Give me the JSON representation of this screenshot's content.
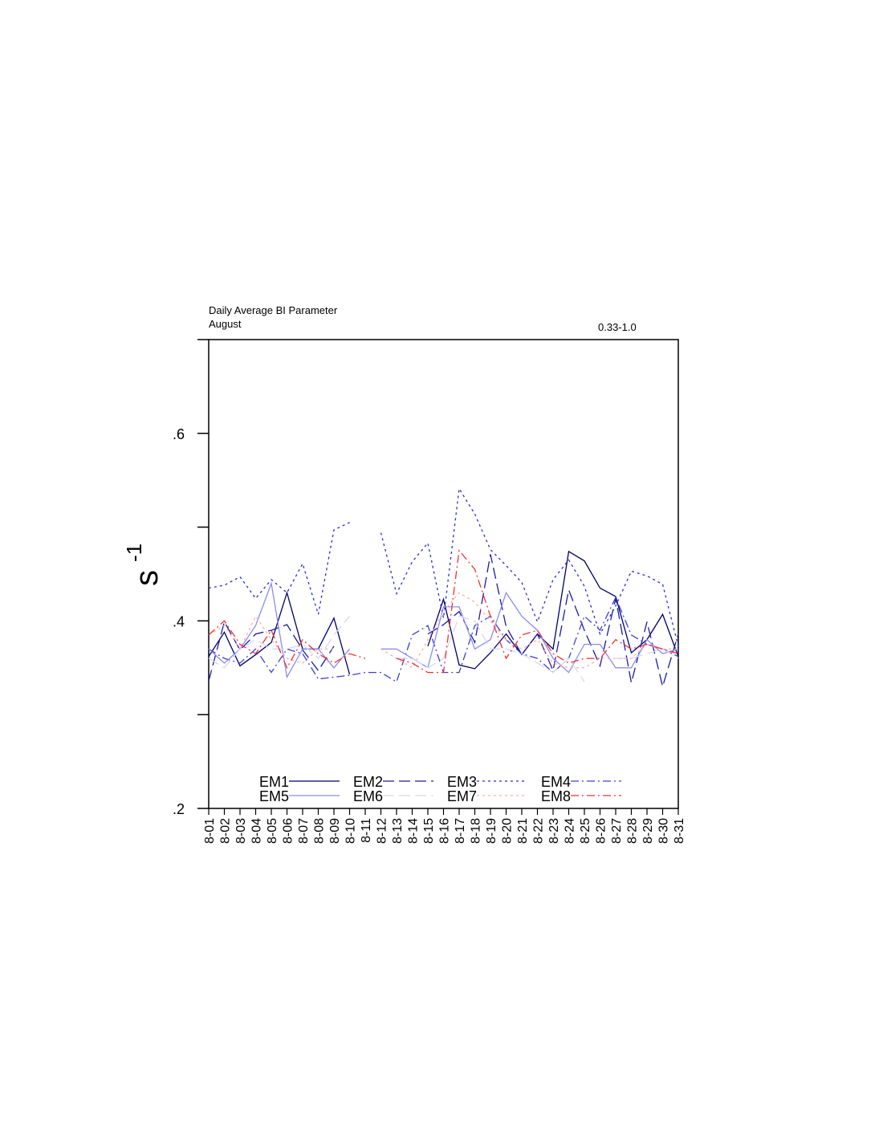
{
  "chart_data": {
    "type": "line",
    "title": "Daily Average BI Parameter",
    "subtitle": "August",
    "annotation": "0.33-1.0",
    "ylabel": "s",
    "ylabel_superscript": "-1",
    "categories": [
      "8-01",
      "8-02",
      "8-03",
      "8-04",
      "8-05",
      "8-06",
      "8-07",
      "8-08",
      "8-09",
      "8-10",
      "8-11",
      "8-12",
      "8-13",
      "8-14",
      "8-15",
      "8-16",
      "8-17",
      "8-18",
      "8-19",
      "8-20",
      "8-21",
      "8-22",
      "8-23",
      "8-24",
      "8-25",
      "8-26",
      "8-27",
      "8-28",
      "8-29",
      "8-30",
      "8-31"
    ],
    "ylim": [
      0.2,
      0.7
    ],
    "yticks": [
      {
        "value": 0.2,
        "label": ".2"
      },
      {
        "value": 0.4,
        "label": ".4"
      },
      {
        "value": 0.6,
        "label": ".6"
      }
    ],
    "minor_yticks": [
      0.3,
      0.5,
      0.7
    ],
    "series": [
      {
        "name": "EM1",
        "color": "#00006e",
        "line_style": "solid",
        "values": [
          0.362,
          0.388,
          0.352,
          0.364,
          0.377,
          0.43,
          0.37,
          0.37,
          0.403,
          0.343,
          null,
          null,
          null,
          null,
          0.373,
          0.423,
          0.353,
          0.349,
          0.366,
          0.386,
          0.364,
          0.386,
          0.37,
          0.474,
          0.464,
          0.435,
          0.426,
          0.366,
          0.38,
          0.407,
          0.362
        ]
      },
      {
        "name": "EM2",
        "color": "#1c1ca6",
        "line_style": "dashed",
        "values": [
          0.336,
          0.399,
          0.369,
          0.386,
          0.39,
          0.396,
          0.369,
          0.347,
          0.373,
          null,
          null,
          null,
          null,
          null,
          0.386,
          0.396,
          0.41,
          0.377,
          0.471,
          0.394,
          0.364,
          0.386,
          0.347,
          0.433,
          0.39,
          0.352,
          0.424,
          0.334,
          0.399,
          0.33,
          0.386
        ]
      },
      {
        "name": "EM3",
        "color": "#2c2ccc",
        "line_style": "dotted",
        "values": [
          0.435,
          0.438,
          0.447,
          0.424,
          0.444,
          0.43,
          0.461,
          0.407,
          0.497,
          0.505,
          null,
          0.494,
          0.429,
          0.463,
          0.483,
          0.403,
          0.541,
          0.514,
          0.476,
          0.459,
          0.441,
          0.399,
          0.444,
          0.465,
          0.437,
          0.386,
          0.416,
          0.453,
          0.448,
          0.439,
          0.373
        ]
      },
      {
        "name": "EM4",
        "color": "#4040d0",
        "line_style": "dashdot",
        "values": [
          0.37,
          0.36,
          0.355,
          0.37,
          0.345,
          0.37,
          0.365,
          0.338,
          0.34,
          0.342,
          0.345,
          0.345,
          0.335,
          0.385,
          0.395,
          0.345,
          0.345,
          0.395,
          0.405,
          0.38,
          0.365,
          0.36,
          0.345,
          0.36,
          0.405,
          0.39,
          0.425,
          0.385,
          0.375,
          0.37,
          0.362
        ]
      },
      {
        "name": "EM5",
        "color": "#8c8cf0",
        "line_style": "solid",
        "values": [
          0.37,
          0.355,
          0.37,
          0.395,
          0.44,
          0.34,
          0.37,
          0.37,
          0.35,
          0.37,
          null,
          0.37,
          0.37,
          0.36,
          0.35,
          0.415,
          0.415,
          0.37,
          0.38,
          0.43,
          0.405,
          0.39,
          0.36,
          0.345,
          0.375,
          0.375,
          0.35,
          0.35,
          0.38,
          0.365,
          0.37
        ]
      },
      {
        "name": "EM6",
        "color": "#d6d6f4",
        "line_style": "dashed",
        "values": [
          0.36,
          0.35,
          0.37,
          0.38,
          0.37,
          0.37,
          0.375,
          0.36,
          0.385,
          0.405,
          null,
          null,
          0.36,
          0.36,
          0.35,
          0.36,
          0.405,
          0.4,
          0.37,
          0.37,
          0.365,
          0.355,
          0.345,
          0.36,
          0.335,
          null,
          0.36,
          0.36,
          0.365,
          0.37,
          0.36
        ]
      },
      {
        "name": "EM7",
        "color": "#ffada5",
        "line_style": "dotted",
        "values": [
          0.385,
          0.395,
          0.37,
          0.405,
          0.38,
          0.36,
          0.355,
          0.37,
          0.37,
          null,
          null,
          0.37,
          0.36,
          0.35,
          0.38,
          0.41,
          0.43,
          0.42,
          0.4,
          0.38,
          0.37,
          0.38,
          0.355,
          0.35,
          0.35,
          0.36,
          0.36,
          0.36,
          0.375,
          0.37,
          0.37
        ]
      },
      {
        "name": "EM8",
        "color": "#ee3333",
        "line_style": "dashdot",
        "values": [
          0.385,
          0.4,
          0.375,
          0.365,
          0.39,
          0.35,
          0.38,
          0.365,
          0.355,
          0.365,
          0.36,
          null,
          0.36,
          0.355,
          0.345,
          0.345,
          0.475,
          0.455,
          0.405,
          0.36,
          0.385,
          0.39,
          0.365,
          0.355,
          0.36,
          0.36,
          0.38,
          0.37,
          0.375,
          0.37,
          0.365
        ]
      }
    ]
  }
}
